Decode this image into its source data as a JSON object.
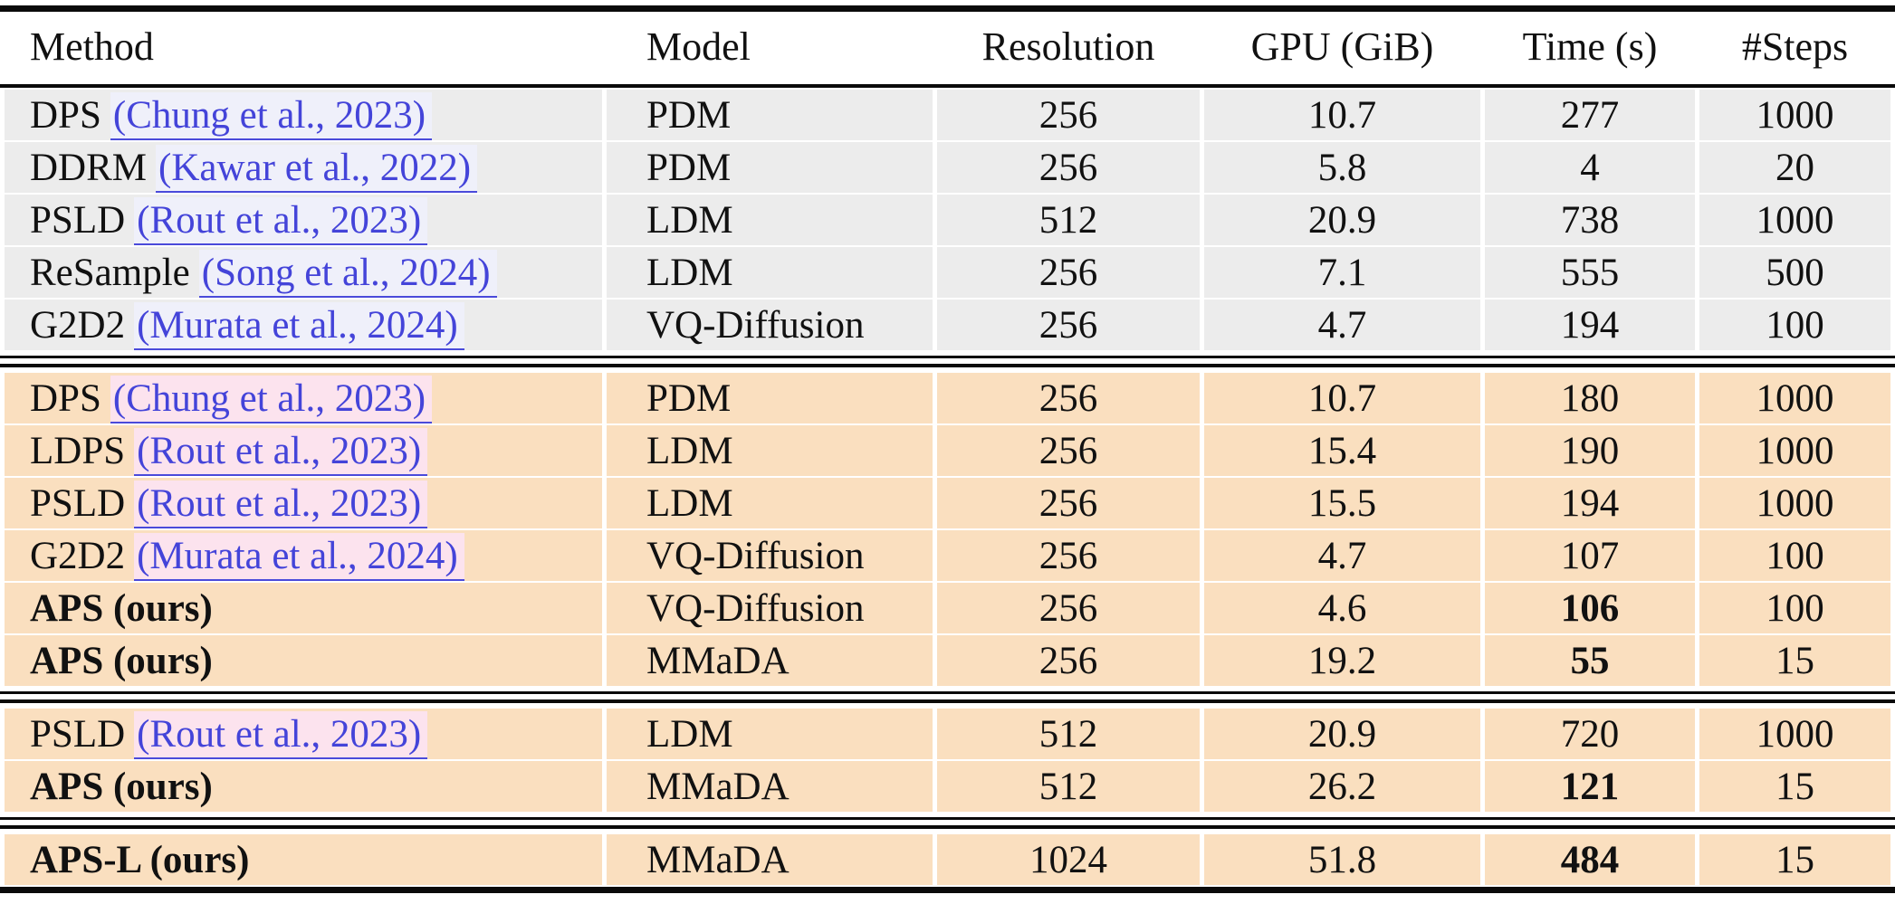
{
  "page": {
    "background": "#ffffff"
  },
  "table": {
    "header": {
      "method": "Method",
      "model": "Model",
      "resolution": "Resolution",
      "gpu": "GPU (GiB)",
      "time": "Time (s)",
      "steps": "#Steps"
    },
    "colors": {
      "gray_row_bg": "#ececec",
      "peach_row_bg": "#fadfbf",
      "link_text": "#4444d9",
      "link_bg_on_gray": "#eff0fa",
      "link_bg_on_peach": "#fce3ee",
      "rule": "#0a0a0a"
    },
    "sections": [
      {
        "theme": "gray",
        "rows": [
          {
            "method": "DPS",
            "citation": "(Chung et al., 2023)",
            "model": "PDM",
            "resolution": "256",
            "gpu": "10.7",
            "time": "277",
            "steps": "1000",
            "bold_method": false,
            "bold_time": false
          },
          {
            "method": "DDRM",
            "citation": "(Kawar et al., 2022)",
            "model": "PDM",
            "resolution": "256",
            "gpu": "5.8",
            "time": "4",
            "steps": "20",
            "bold_method": false,
            "bold_time": false
          },
          {
            "method": "PSLD",
            "citation": "(Rout et al., 2023)",
            "model": "LDM",
            "resolution": "512",
            "gpu": "20.9",
            "time": "738",
            "steps": "1000",
            "bold_method": false,
            "bold_time": false
          },
          {
            "method": "ReSample",
            "citation": "(Song et al., 2024)",
            "model": "LDM",
            "resolution": "256",
            "gpu": "7.1",
            "time": "555",
            "steps": "500",
            "bold_method": false,
            "bold_time": false
          },
          {
            "method": "G2D2",
            "citation": "(Murata et al., 2024)",
            "model": "VQ-Diffusion",
            "resolution": "256",
            "gpu": "4.7",
            "time": "194",
            "steps": "100",
            "bold_method": false,
            "bold_time": false
          }
        ]
      },
      {
        "theme": "peach",
        "rows": [
          {
            "method": "DPS",
            "citation": "(Chung et al., 2023)",
            "model": "PDM",
            "resolution": "256",
            "gpu": "10.7",
            "time": "180",
            "steps": "1000",
            "bold_method": false,
            "bold_time": false
          },
          {
            "method": "LDPS",
            "citation": "(Rout et al., 2023)",
            "model": "LDM",
            "resolution": "256",
            "gpu": "15.4",
            "time": "190",
            "steps": "1000",
            "bold_method": false,
            "bold_time": false
          },
          {
            "method": "PSLD",
            "citation": "(Rout et al., 2023)",
            "model": "LDM",
            "resolution": "256",
            "gpu": "15.5",
            "time": "194",
            "steps": "1000",
            "bold_method": false,
            "bold_time": false
          },
          {
            "method": "G2D2",
            "citation": "(Murata et al., 2024)",
            "model": "VQ-Diffusion",
            "resolution": "256",
            "gpu": "4.7",
            "time": "107",
            "steps": "100",
            "bold_method": false,
            "bold_time": false
          },
          {
            "method": "APS (ours)",
            "citation": "",
            "model": "VQ-Diffusion",
            "resolution": "256",
            "gpu": "4.6",
            "time": "106",
            "steps": "100",
            "bold_method": true,
            "bold_time": true
          },
          {
            "method": "APS (ours)",
            "citation": "",
            "model": "MMaDA",
            "resolution": "256",
            "gpu": "19.2",
            "time": "55",
            "steps": "15",
            "bold_method": true,
            "bold_time": true
          }
        ]
      },
      {
        "theme": "peach",
        "rows": [
          {
            "method": "PSLD",
            "citation": "(Rout et al., 2023)",
            "model": "LDM",
            "resolution": "512",
            "gpu": "20.9",
            "time": "720",
            "steps": "1000",
            "bold_method": false,
            "bold_time": false
          },
          {
            "method": "APS (ours)",
            "citation": "",
            "model": "MMaDA",
            "resolution": "512",
            "gpu": "26.2",
            "time": "121",
            "steps": "15",
            "bold_method": true,
            "bold_time": true
          }
        ]
      },
      {
        "theme": "peach",
        "rows": [
          {
            "method": "APS-L (ours)",
            "citation": "",
            "model": "MMaDA",
            "resolution": "1024",
            "gpu": "51.8",
            "time": "484",
            "steps": "15",
            "bold_method": true,
            "bold_time": true
          }
        ]
      }
    ]
  }
}
